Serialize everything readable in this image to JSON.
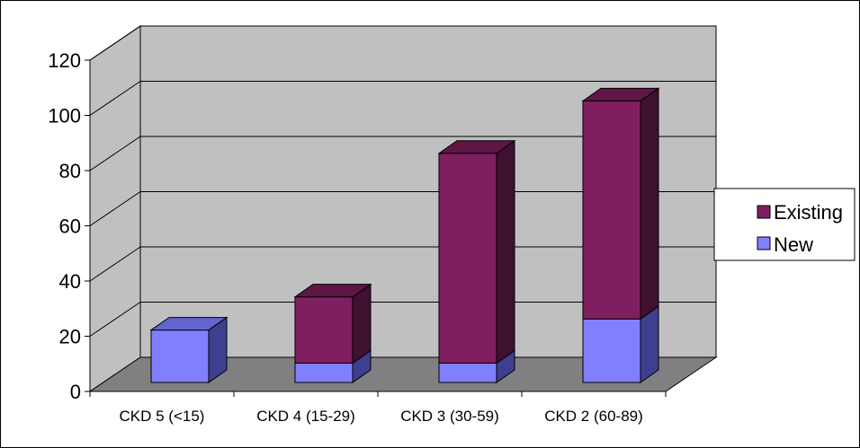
{
  "chart_data": {
    "type": "bar",
    "stacked": true,
    "three_d": true,
    "categories": [
      "CKD 5 (<15)",
      "CKD 4 (15-29)",
      "CKD 3 (30-59)",
      "CKD 2 (60-89)"
    ],
    "series": [
      {
        "name": "New",
        "values": [
          19,
          7,
          7,
          23
        ],
        "color": "#8080ff",
        "side_color": "#3f3f8f",
        "top_color": "#6565d0"
      },
      {
        "name": "Existing",
        "values": [
          0,
          24,
          76,
          79
        ],
        "color": "#7f1f5f",
        "side_color": "#3f1030",
        "top_color": "#5f1646"
      }
    ],
    "ylim": [
      0,
      120
    ],
    "yticks": [
      "0",
      "20",
      "40",
      "60",
      "80",
      "100",
      "120"
    ],
    "grid": true,
    "legend_position": "right",
    "wall_color": "#c0c0c0",
    "floor_color": "#808080"
  }
}
